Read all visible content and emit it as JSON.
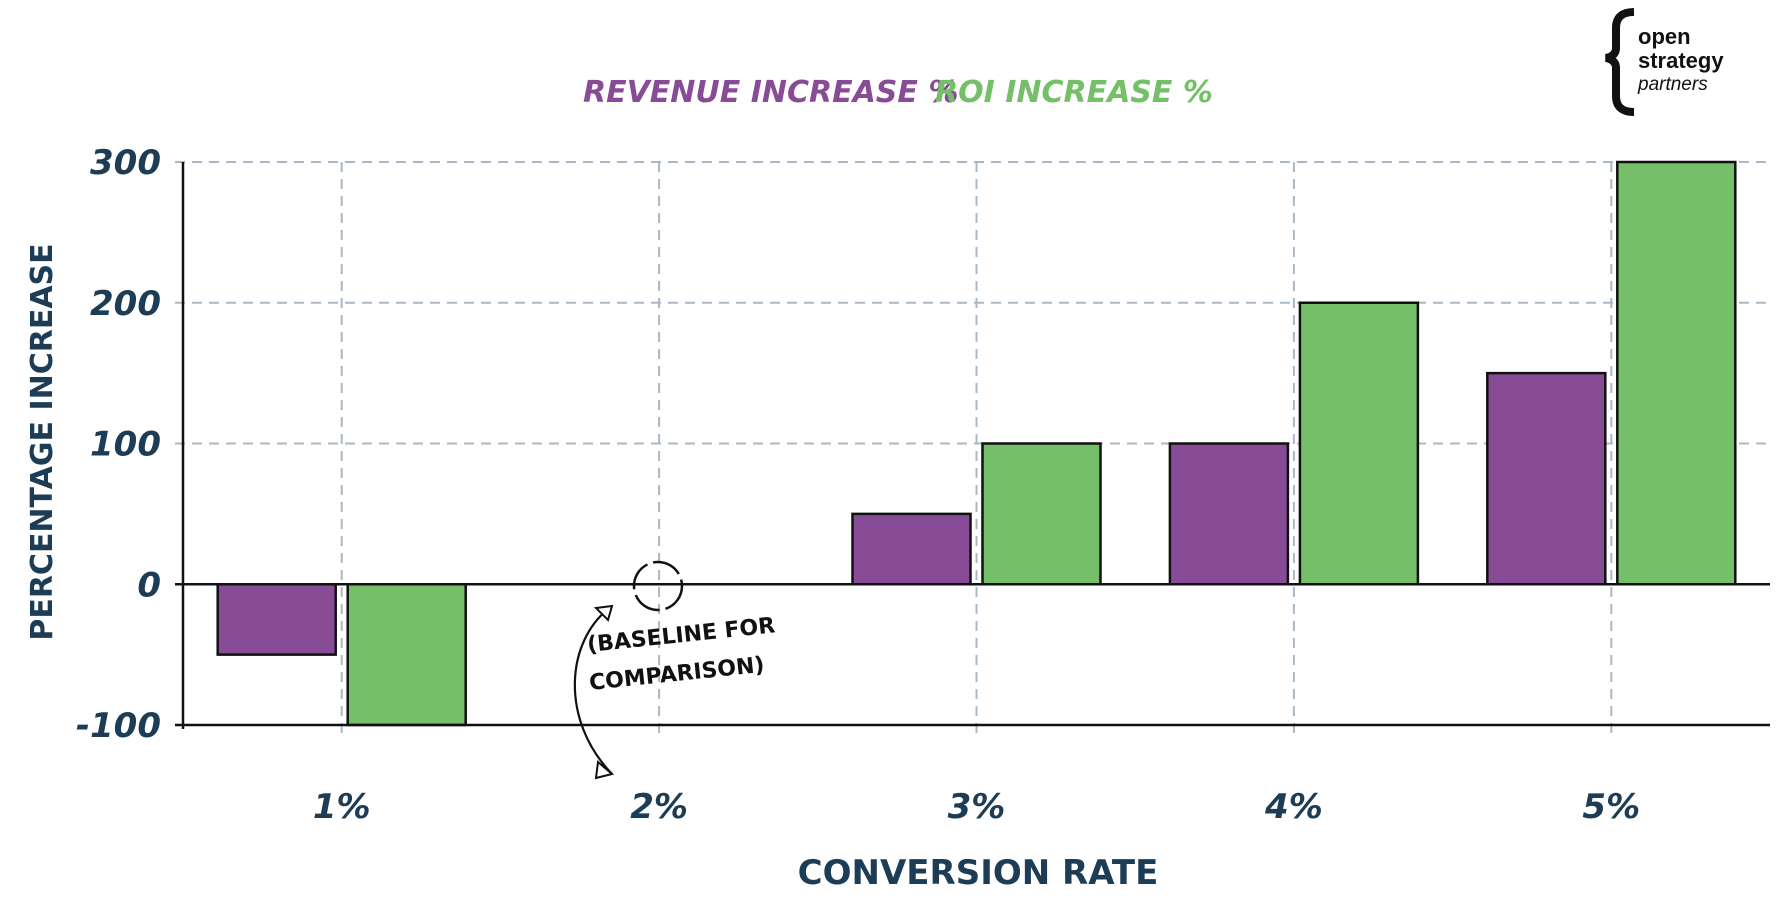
{
  "chart_data": {
    "type": "bar",
    "categories": [
      "1%",
      "2%",
      "3%",
      "4%",
      "5%"
    ],
    "series": [
      {
        "name": "REVENUE INCREASE %",
        "values": [
          -50,
          0,
          50,
          100,
          150
        ],
        "color": "#884c97"
      },
      {
        "name": "ROI INCREASE %",
        "values": [
          -100,
          0,
          100,
          200,
          300
        ],
        "color": "#74bf67"
      }
    ],
    "xlabel": "CONVERSION RATE",
    "ylabel": "PERCENTAGE INCREASE",
    "ylim": [
      -100,
      300
    ],
    "yticks": [
      -100,
      0,
      100,
      200,
      300
    ],
    "grid": true,
    "legend_position": "top-center",
    "annotation": "(BASELINE FOR COMPARISON)"
  },
  "annotation_lines": [
    "(BASELINE FOR",
    "COMPARISON)"
  ],
  "logo": {
    "line1": "open",
    "line2": "strategy",
    "line3": "partners"
  },
  "colors": {
    "text": "#1c3d55",
    "grid": "#a9b8c8",
    "axis": "#111111"
  }
}
